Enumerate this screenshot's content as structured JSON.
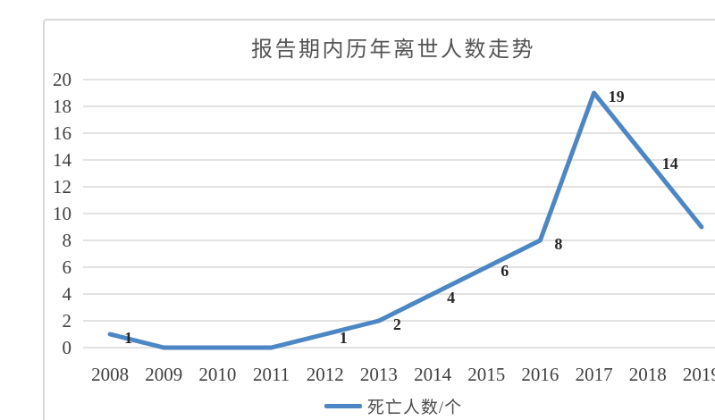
{
  "chart_data": {
    "type": "line",
    "title": "报告期内历年离世人数走势",
    "categories": [
      "2008",
      "2009",
      "2010",
      "2011",
      "2012",
      "2013",
      "2014",
      "2015",
      "2016",
      "2017",
      "2018",
      "2019"
    ],
    "series": [
      {
        "name": "死亡人数/个",
        "values": [
          1,
          0,
          0,
          0,
          1,
          2,
          4,
          6,
          8,
          19,
          14,
          9
        ]
      }
    ],
    "xlabel": "",
    "ylabel": "",
    "ylim": [
      0,
      20
    ],
    "ytick_step": 2,
    "grid": "horizontal-only",
    "legend_position": "bottom",
    "data_labels": "right-of-point, hidden for zero values"
  },
  "colors": {
    "line": "#4d86c4",
    "gridline": "#d9d9d9",
    "frame_border": "#d9d9d9",
    "title_text": "#545454",
    "tick_text": "#3f3f3f",
    "data_label_text": "#262626",
    "background": "#ffffff"
  }
}
